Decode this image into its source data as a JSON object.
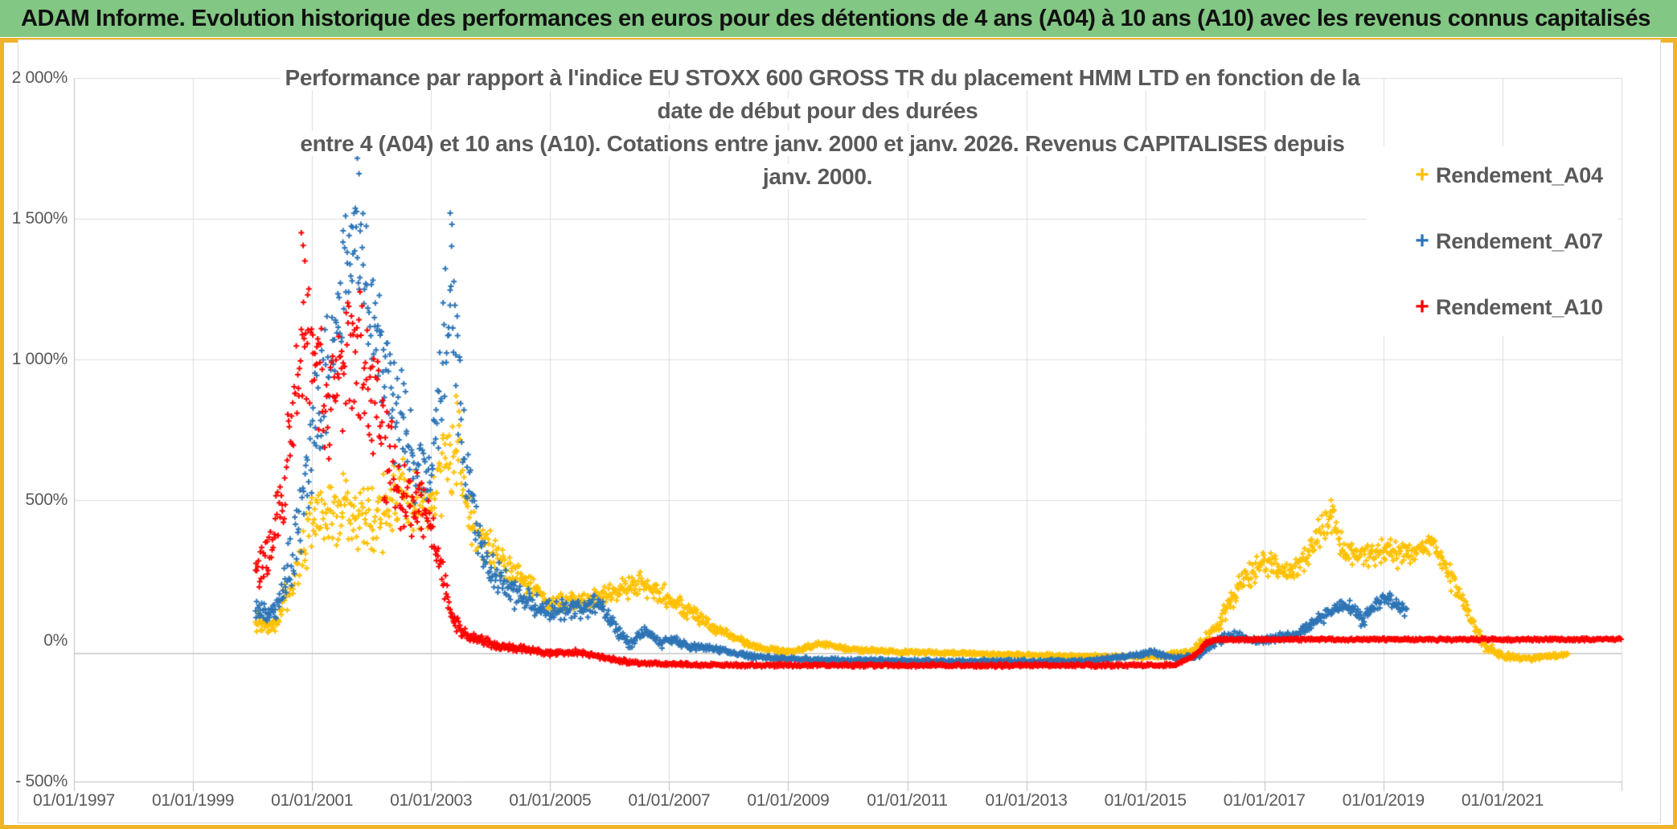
{
  "header": {
    "title": "ADAM Informe. Evolution historique des performances en euros pour des détentions de 4 ans (A04) à 10 ans (A10) avec les revenus connus capitalisés",
    "bg_color": "#82C783",
    "accent_color": "#EFB428"
  },
  "chart_data": {
    "type": "scatter",
    "marker": "plus",
    "title_line1": "Performance par rapport à l'indice EU STOXX 600 GROSS TR  du placement HMM LTD en fonction de la date de début pour des durées",
    "title_line2": "entre 4 (A04) et 10 ans (A10). Cotations entre janv. 2000 et janv. 2026. Revenus CAPITALISES depuis janv. 2000.",
    "grid_color": "#DCDCDC",
    "axis_color": "#BFBFBF",
    "label_color": "#595959",
    "x_axis": {
      "range_years": [
        1997,
        2023
      ],
      "tick_years": [
        1997,
        1999,
        2001,
        2003,
        2005,
        2007,
        2009,
        2011,
        2013,
        2015,
        2017,
        2019,
        2021
      ],
      "tick_labels": [
        "01/01/1997",
        "01/01/1999",
        "01/01/2001",
        "01/01/2003",
        "01/01/2005",
        "01/01/2007",
        "01/01/2009",
        "01/01/2011",
        "01/01/2013",
        "01/01/2015",
        "01/01/2017",
        "01/01/2019",
        "01/01/2021"
      ],
      "gridlines": true
    },
    "y_axis": {
      "range": [
        -500,
        2000
      ],
      "tick_values": [
        2000,
        1500,
        1000,
        500,
        0,
        -500
      ],
      "tick_labels": [
        "2 000%",
        "1 500%",
        "1 000%",
        "500%",
        "0%",
        "- 500%"
      ],
      "gridline_skip_value": 0,
      "baseline_value": -45
    },
    "legend": [
      {
        "label": "Rendement_A04",
        "color": "#FFC000"
      },
      {
        "label": "Rendement_A07",
        "color": "#2E75B6"
      },
      {
        "label": "Rendement_A10",
        "color": "#FF0000"
      }
    ],
    "step_years": 0.012,
    "series": [
      {
        "name": "Rendement_A04",
        "color": "#FFC000",
        "seed": 7,
        "envelope": [
          [
            2000.05,
            60,
            45
          ],
          [
            2000.35,
            45,
            30
          ],
          [
            2000.7,
            220,
            90
          ],
          [
            2001.0,
            420,
            130
          ],
          [
            2001.3,
            450,
            140
          ],
          [
            2001.6,
            480,
            150
          ],
          [
            2001.9,
            420,
            160
          ],
          [
            2002.2,
            440,
            170
          ],
          [
            2002.5,
            540,
            130
          ],
          [
            2002.8,
            470,
            120
          ],
          [
            2003.05,
            520,
            130
          ],
          [
            2003.3,
            650,
            160
          ],
          [
            2003.45,
            700,
            160
          ],
          [
            2003.6,
            500,
            120
          ],
          [
            2003.8,
            380,
            90
          ],
          [
            2004.1,
            300,
            70
          ],
          [
            2004.5,
            230,
            55
          ],
          [
            2005.0,
            130,
            40
          ],
          [
            2005.5,
            140,
            40
          ],
          [
            2006.0,
            170,
            45
          ],
          [
            2006.5,
            205,
            45
          ],
          [
            2007.0,
            150,
            45
          ],
          [
            2007.5,
            80,
            35
          ],
          [
            2008.0,
            20,
            20
          ],
          [
            2008.5,
            -25,
            12
          ],
          [
            2009.0,
            -40,
            10
          ],
          [
            2009.55,
            -10,
            12
          ],
          [
            2010.0,
            -30,
            10
          ],
          [
            2011.0,
            -40,
            9
          ],
          [
            2012.5,
            -48,
            8
          ],
          [
            2014.0,
            -55,
            8
          ],
          [
            2015.2,
            -58,
            8
          ],
          [
            2015.8,
            -35,
            12
          ],
          [
            2016.2,
            40,
            35
          ],
          [
            2016.6,
            200,
            55
          ],
          [
            2017.0,
            280,
            60
          ],
          [
            2017.35,
            240,
            55
          ],
          [
            2017.7,
            300,
            60
          ],
          [
            2018.0,
            400,
            70
          ],
          [
            2018.15,
            420,
            80
          ],
          [
            2018.4,
            290,
            60
          ],
          [
            2018.7,
            310,
            55
          ],
          [
            2019.0,
            320,
            55
          ],
          [
            2019.4,
            300,
            50
          ],
          [
            2019.8,
            340,
            45
          ],
          [
            2020.1,
            250,
            60
          ],
          [
            2020.4,
            110,
            45
          ],
          [
            2020.7,
            -20,
            25
          ],
          [
            2021.0,
            -55,
            15
          ],
          [
            2021.5,
            -60,
            12
          ],
          [
            2022.1,
            -50,
            10
          ]
        ],
        "spikes": [
          [
            2003.42,
            870
          ],
          [
            2003.44,
            845
          ],
          [
            2003.47,
            815
          ],
          [
            2018.12,
            500
          ],
          [
            2018.15,
            478
          ]
        ]
      },
      {
        "name": "Rendement_A07",
        "color": "#2E75B6",
        "seed": 13,
        "envelope": [
          [
            2000.05,
            120,
            45
          ],
          [
            2000.35,
            90,
            40
          ],
          [
            2000.7,
            320,
            140
          ],
          [
            2001.0,
            700,
            220
          ],
          [
            2001.3,
            1000,
            280
          ],
          [
            2001.6,
            1350,
            280
          ],
          [
            2001.75,
            1500,
            300
          ],
          [
            2001.95,
            1250,
            280
          ],
          [
            2002.2,
            950,
            260
          ],
          [
            2002.5,
            800,
            240
          ],
          [
            2002.8,
            560,
            180
          ],
          [
            2003.0,
            560,
            160
          ],
          [
            2003.2,
            1000,
            280
          ],
          [
            2003.35,
            1250,
            280
          ],
          [
            2003.55,
            650,
            200
          ],
          [
            2003.8,
            330,
            100
          ],
          [
            2004.1,
            230,
            70
          ],
          [
            2004.5,
            150,
            55
          ],
          [
            2005.0,
            110,
            45
          ],
          [
            2005.5,
            115,
            40
          ],
          [
            2005.8,
            130,
            40
          ],
          [
            2006.1,
            40,
            30
          ],
          [
            2006.35,
            -15,
            22
          ],
          [
            2006.6,
            40,
            25
          ],
          [
            2006.85,
            -10,
            22
          ],
          [
            2007.05,
            10,
            22
          ],
          [
            2007.35,
            -25,
            18
          ],
          [
            2007.7,
            -25,
            15
          ],
          [
            2008.1,
            -45,
            12
          ],
          [
            2008.6,
            -60,
            10
          ],
          [
            2010.0,
            -70,
            9
          ],
          [
            2012.0,
            -72,
            8
          ],
          [
            2014.0,
            -72,
            8
          ],
          [
            2014.7,
            -55,
            10
          ],
          [
            2015.1,
            -40,
            12
          ],
          [
            2015.5,
            -60,
            10
          ],
          [
            2015.9,
            -55,
            12
          ],
          [
            2016.2,
            0,
            22
          ],
          [
            2016.5,
            20,
            22
          ],
          [
            2016.8,
            0,
            18
          ],
          [
            2017.1,
            5,
            18
          ],
          [
            2017.5,
            20,
            18
          ],
          [
            2017.9,
            75,
            28
          ],
          [
            2018.2,
            110,
            30
          ],
          [
            2018.45,
            125,
            32
          ],
          [
            2018.65,
            70,
            28
          ],
          [
            2018.9,
            135,
            30
          ],
          [
            2019.05,
            155,
            32
          ],
          [
            2019.25,
            120,
            35
          ],
          [
            2019.4,
            110,
            30
          ]
        ],
        "spikes": [
          [
            2001.71,
            1800
          ],
          [
            2001.73,
            1760
          ],
          [
            2001.76,
            1715
          ],
          [
            2001.79,
            1660
          ],
          [
            2003.32,
            1520
          ],
          [
            2003.35,
            1480
          ]
        ]
      },
      {
        "name": "Rendement_A10",
        "color": "#FF0000",
        "seed": 29,
        "envelope": [
          [
            2000.05,
            240,
            70
          ],
          [
            2000.3,
            300,
            100
          ],
          [
            2000.6,
            650,
            220
          ],
          [
            2000.85,
            1100,
            280
          ],
          [
            2001.05,
            1000,
            260
          ],
          [
            2001.3,
            850,
            240
          ],
          [
            2001.55,
            1000,
            260
          ],
          [
            2001.8,
            1000,
            280
          ],
          [
            2002.05,
            850,
            260
          ],
          [
            2002.3,
            650,
            220
          ],
          [
            2002.55,
            520,
            150
          ],
          [
            2002.8,
            480,
            120
          ],
          [
            2003.0,
            430,
            100
          ],
          [
            2003.15,
            260,
            90
          ],
          [
            2003.35,
            80,
            45
          ],
          [
            2003.6,
            15,
            25
          ],
          [
            2003.9,
            0,
            18
          ],
          [
            2004.2,
            -20,
            15
          ],
          [
            2004.6,
            -30,
            14
          ],
          [
            2005.0,
            -45,
            12
          ],
          [
            2005.5,
            -40,
            12
          ],
          [
            2006.0,
            -65,
            10
          ],
          [
            2006.5,
            -80,
            8
          ],
          [
            2008.0,
            -87,
            7
          ],
          [
            2015.5,
            -87,
            7
          ],
          [
            2015.85,
            -50,
            12
          ],
          [
            2016.05,
            -5,
            10
          ],
          [
            2016.2,
            5,
            6
          ],
          [
            2023.0,
            5,
            6
          ]
        ],
        "spikes": [
          [
            2000.82,
            1450
          ],
          [
            2000.85,
            1405
          ],
          [
            2000.88,
            1350
          ]
        ]
      }
    ]
  }
}
